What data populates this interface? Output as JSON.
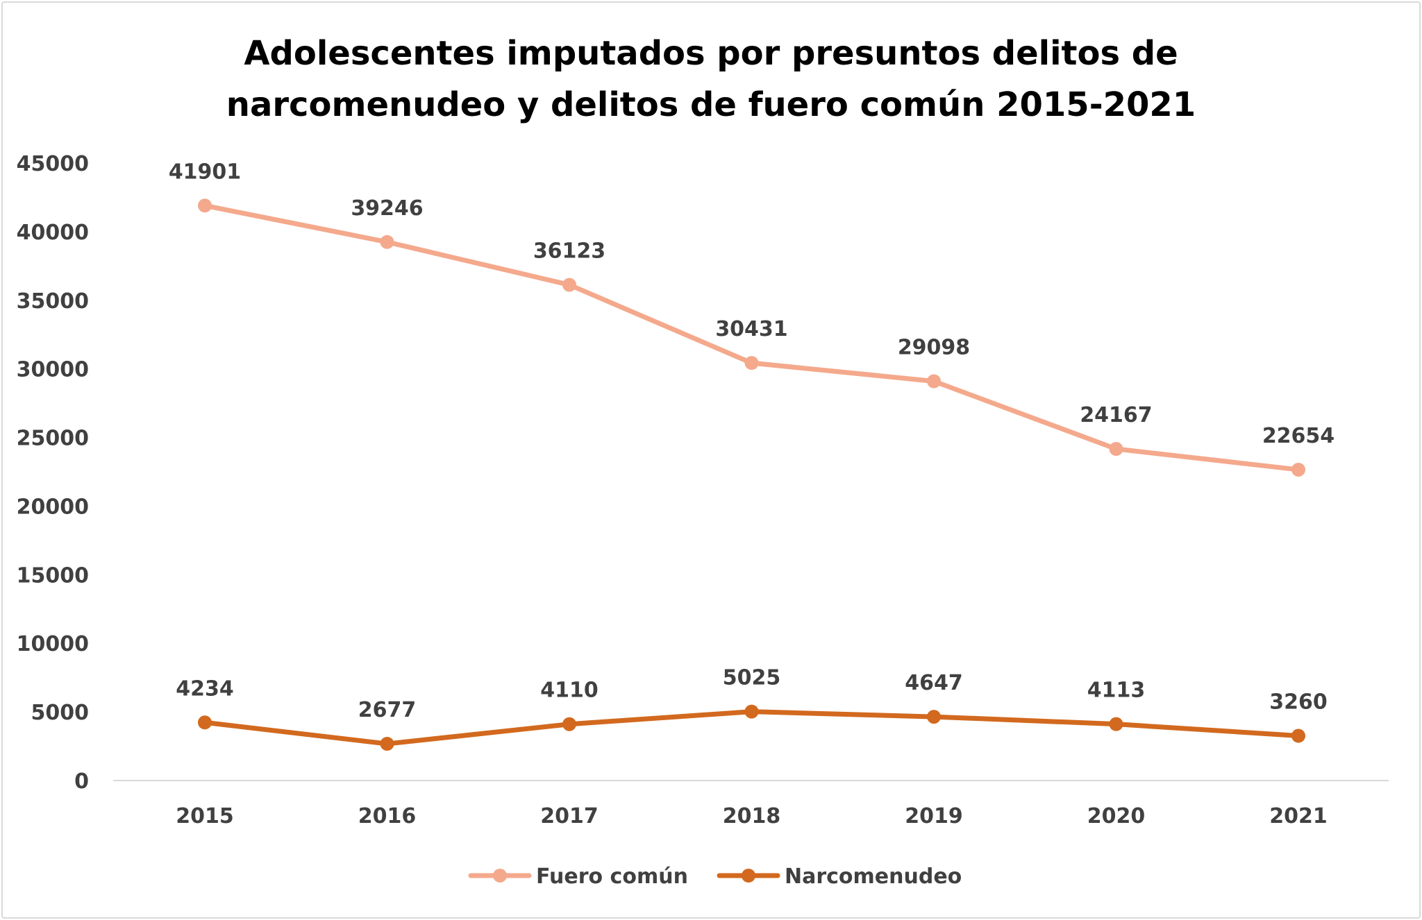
{
  "chart_data": {
    "type": "line",
    "title_lines": [
      "Adolescentes imputados por presuntos delitos de",
      "narcomenudeo y delitos de fuero común 2015-2021"
    ],
    "categories": [
      "2015",
      "2016",
      "2017",
      "2018",
      "2019",
      "2020",
      "2021"
    ],
    "series": [
      {
        "name": "Fuero común",
        "color": "#F4A98C",
        "values": [
          41901,
          39246,
          36123,
          30431,
          29098,
          24167,
          22654
        ],
        "labels": [
          "41901",
          "39246",
          "36123",
          "30431",
          "29098",
          "24167",
          "22654"
        ]
      },
      {
        "name": "Narcomenudeo",
        "color": "#D2691E",
        "values": [
          4234,
          2677,
          4110,
          5025,
          4647,
          4113,
          3260
        ],
        "labels": [
          "4234",
          "2677",
          "4110",
          "5025",
          "4647",
          "4113",
          "3260"
        ]
      }
    ],
    "ylim": [
      0,
      45000
    ],
    "yticks": [
      0,
      5000,
      10000,
      15000,
      20000,
      25000,
      30000,
      35000,
      40000,
      45000
    ],
    "ytick_labels": [
      "0",
      "5000",
      "10000",
      "15000",
      "20000",
      "25000",
      "30000",
      "35000",
      "40000",
      "45000"
    ],
    "xlabel": "",
    "ylabel": "",
    "grid": false,
    "legend_position": "bottom"
  }
}
